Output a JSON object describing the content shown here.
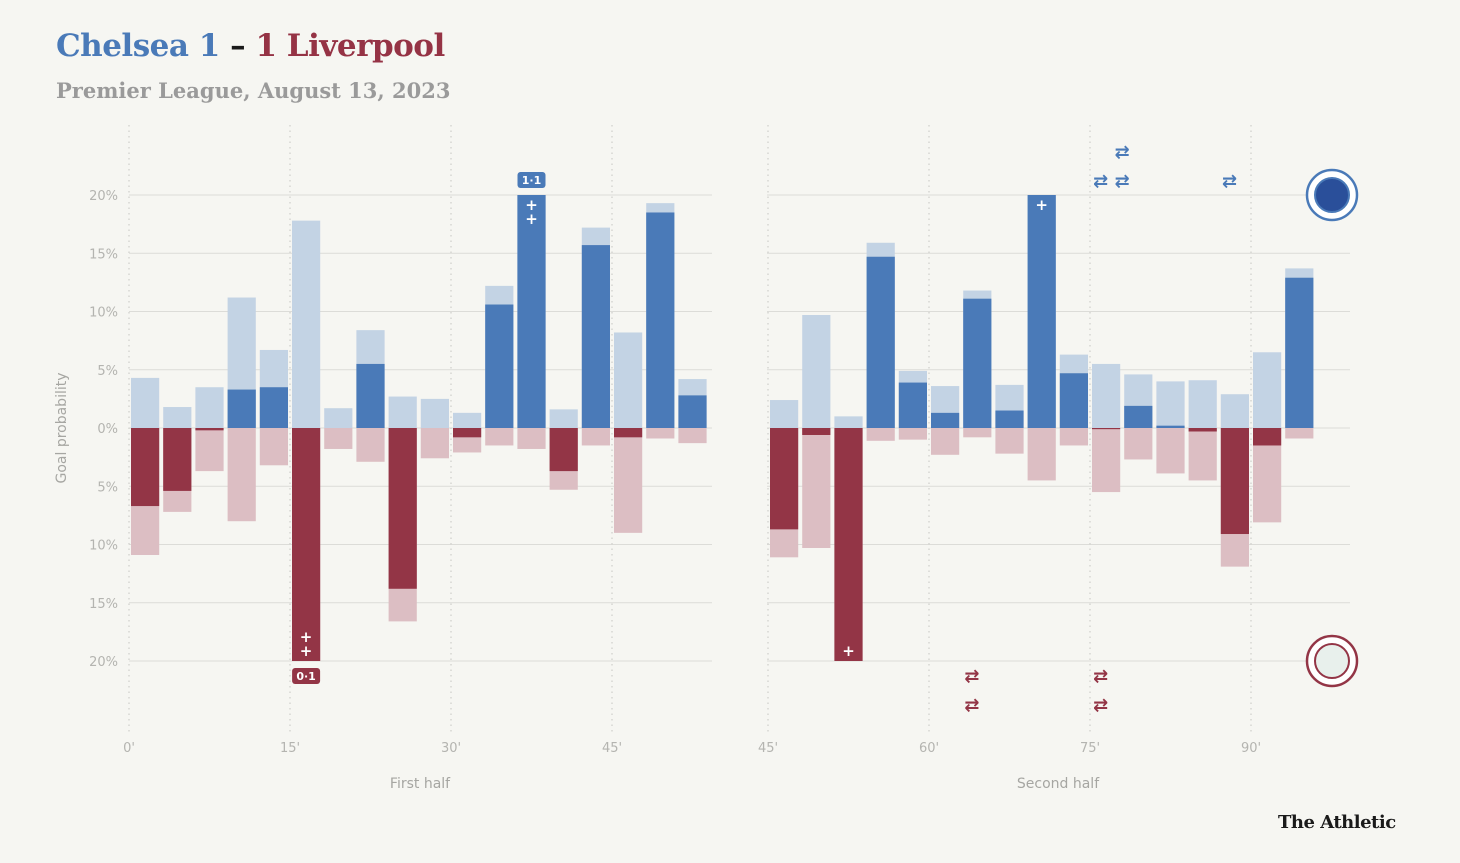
{
  "header": {
    "home_team": "Chelsea 1",
    "dash": "–",
    "away_team": "1 Liverpool",
    "subtitle": "Premier League, August 13, 2023"
  },
  "brand": "The Athletic",
  "colors": {
    "home_dark": "#4a7ab8",
    "home_light": "#c3d3e4",
    "away_dark": "#933546",
    "away_light": "#dcbec3",
    "grid": "#dcdcd8",
    "background": "#f6f6f2"
  },
  "chart_data": {
    "type": "bar",
    "title": "Chelsea 1 – 1 Liverpool",
    "subtitle": "Premier League, August 13, 2023",
    "ylabel": "Goal probability",
    "ylim": [
      -20,
      20
    ],
    "yticks": [
      "20%",
      "15%",
      "10%",
      "5%",
      "0%",
      "5%",
      "10%",
      "15%",
      "20%"
    ],
    "ytick_values": [
      20,
      15,
      10,
      5,
      0,
      -5,
      -10,
      -15,
      -20
    ],
    "grid": true,
    "bar_interval_minutes": 3,
    "legend": "team crests at right: Chelsea (top, positive), Liverpool (bottom, negative)",
    "series_note": "light = total chance probability in interval, dark = on-target/xG portion; positive = Chelsea, negative = Liverpool",
    "panels": [
      {
        "name": "first-half",
        "xlabel": "First half",
        "xlim": [
          0,
          57
        ],
        "xticks": [
          0,
          15,
          30,
          45
        ],
        "xtick_labels": [
          "0'",
          "15'",
          "30'",
          "45'"
        ],
        "start_minutes": [
          0,
          3,
          6,
          9,
          12,
          15,
          18,
          21,
          24,
          27,
          30,
          33,
          36,
          39,
          42,
          45,
          48,
          51
        ],
        "home_light": [
          4.3,
          1.8,
          3.5,
          11.2,
          6.7,
          17.8,
          1.7,
          8.4,
          2.7,
          2.5,
          1.3,
          12.2,
          20,
          1.6,
          17.2,
          8.2,
          19.3,
          4.2
        ],
        "home_dark": [
          0,
          0,
          0,
          3.3,
          3.5,
          0,
          0,
          5.5,
          0,
          0,
          0,
          10.6,
          20,
          0,
          15.7,
          0,
          18.5,
          2.8
        ],
        "away_light": [
          10.9,
          7.2,
          3.7,
          8.0,
          3.2,
          20,
          1.8,
          2.9,
          16.6,
          2.6,
          2.1,
          1.5,
          1.8,
          5.3,
          1.5,
          9.0,
          0.9,
          1.3
        ],
        "away_dark": [
          6.7,
          5.4,
          0.2,
          0,
          0,
          20,
          0,
          0,
          13.8,
          0,
          0.8,
          0,
          0,
          3.7,
          0,
          0.8,
          0,
          0
        ],
        "goals": [
          {
            "team": "away",
            "bar_index": 5,
            "score_label": "0-1",
            "markers": 2
          },
          {
            "team": "home",
            "bar_index": 12,
            "score_label": "1-1",
            "markers": 2
          }
        ],
        "substitutions": []
      },
      {
        "name": "second-half",
        "xlabel": "Second half",
        "xlim": [
          45,
          102
        ],
        "xticks": [
          45,
          60,
          75,
          90
        ],
        "xtick_labels": [
          "45'",
          "60'",
          "75'",
          "90'"
        ],
        "start_minutes": [
          45,
          48,
          51,
          54,
          57,
          60,
          63,
          66,
          69,
          72,
          75,
          78,
          81,
          84,
          87,
          90,
          93
        ],
        "home_light": [
          2.4,
          9.7,
          1.0,
          15.9,
          4.9,
          3.6,
          11.8,
          3.7,
          20,
          6.3,
          5.5,
          4.6,
          4.0,
          4.1,
          2.9,
          6.5,
          13.7
        ],
        "home_dark": [
          0,
          0,
          0,
          14.7,
          3.9,
          1.3,
          11.1,
          1.5,
          20,
          4.7,
          0,
          1.9,
          0.2,
          0,
          0,
          0,
          12.9
        ],
        "away_light": [
          11.1,
          10.3,
          20,
          1.1,
          1.0,
          2.3,
          0.8,
          2.2,
          4.5,
          1.5,
          5.5,
          2.7,
          3.9,
          4.5,
          11.9,
          8.1,
          0.9
        ],
        "away_dark": [
          8.7,
          0.6,
          20,
          0,
          0,
          0,
          0,
          0,
          0,
          0,
          0.1,
          0,
          0,
          0.3,
          9.1,
          1.5,
          0
        ],
        "goals": [
          {
            "team": "away",
            "bar_index": 2,
            "score_label": "",
            "markers": 1
          },
          {
            "team": "home",
            "bar_index": 8,
            "score_label": "",
            "markers": 1
          }
        ],
        "substitutions": [
          {
            "team": "home",
            "minute": 76,
            "count": 1
          },
          {
            "team": "home",
            "minute": 78,
            "count": 2
          },
          {
            "team": "home",
            "minute": 88,
            "count": 1
          },
          {
            "team": "away",
            "minute": 64,
            "count": 2
          },
          {
            "team": "away",
            "minute": 76,
            "count": 2
          }
        ]
      }
    ]
  }
}
